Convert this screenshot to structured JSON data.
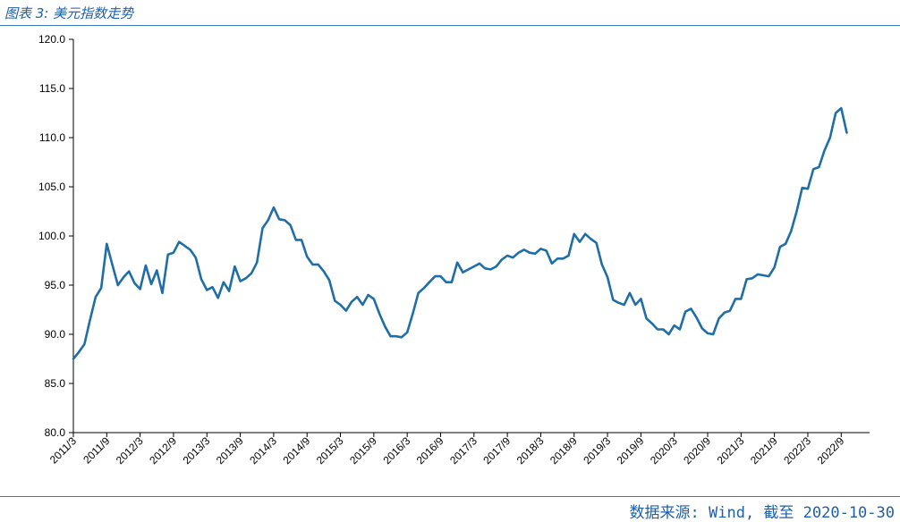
{
  "header": {
    "title": "图表 3: 美元指数走势"
  },
  "footer": {
    "source": "数据来源: Wind, 截至 2020-10-30"
  },
  "chart_data": {
    "type": "line",
    "title": "",
    "xlabel": "",
    "ylabel": "",
    "ylim": [
      80,
      120
    ],
    "yticks": [
      "80.0",
      "85.0",
      "90.0",
      "95.0",
      "100.0",
      "105.0",
      "110.0",
      "115.0",
      "120.0"
    ],
    "xticks": [
      "2011/3",
      "2011/9",
      "2012/3",
      "2012/9",
      "2013/3",
      "2013/9",
      "2014/3",
      "2014/9",
      "2015/3",
      "2015/9",
      "2016/3",
      "2016/9",
      "2017/3",
      "2017/9",
      "2018/3",
      "2018/9",
      "2019/3",
      "2019/9",
      "2020/3",
      "2020/9",
      "2021/3",
      "2021/9",
      "2022/3",
      "2022/9"
    ],
    "grid": false,
    "series": [
      {
        "color": "#1f6ea6",
        "x": [
          "2011/3",
          "2011/4",
          "2011/5",
          "2011/6",
          "2011/7",
          "2011/8",
          "2011/9",
          "2011/10",
          "2011/11",
          "2011/12",
          "2012/1",
          "2012/2",
          "2012/3",
          "2012/4",
          "2012/5",
          "2012/6",
          "2012/7",
          "2012/8",
          "2012/9",
          "2012/10",
          "2012/11",
          "2012/12",
          "2013/1",
          "2013/2",
          "2013/3",
          "2013/4",
          "2013/5",
          "2013/6",
          "2013/7",
          "2013/8",
          "2013/9",
          "2013/10",
          "2013/11",
          "2013/12",
          "2014/1",
          "2014/2",
          "2014/3",
          "2014/4",
          "2014/5",
          "2014/6",
          "2014/7",
          "2014/8",
          "2014/9",
          "2014/10",
          "2014/11",
          "2014/12",
          "2015/1",
          "2015/2",
          "2015/3",
          "2015/4",
          "2015/5",
          "2015/6",
          "2015/7",
          "2015/8",
          "2015/9",
          "2015/10",
          "2015/11",
          "2015/12",
          "2016/1",
          "2016/2",
          "2016/3",
          "2016/4",
          "2016/5",
          "2016/6",
          "2016/7",
          "2016/8",
          "2016/9",
          "2016/10",
          "2016/11",
          "2016/12",
          "2017/1",
          "2017/2",
          "2017/3",
          "2017/4",
          "2017/5",
          "2017/6",
          "2017/7",
          "2017/8",
          "2017/9",
          "2017/10",
          "2017/11",
          "2017/12",
          "2018/1",
          "2018/2",
          "2018/3",
          "2018/4",
          "2018/5",
          "2018/6",
          "2018/7",
          "2018/8",
          "2018/9",
          "2018/10",
          "2018/11",
          "2018/12",
          "2019/1",
          "2019/2",
          "2019/3",
          "2019/4",
          "2019/5",
          "2019/6",
          "2019/7",
          "2019/8",
          "2019/9",
          "2019/10",
          "2019/11",
          "2019/12",
          "2020/1",
          "2020/2",
          "2020/3",
          "2020/4",
          "2020/5",
          "2020/6",
          "2020/7",
          "2020/8",
          "2020/9",
          "2020/10",
          "2020/11",
          "2020/12",
          "2021/1",
          "2021/2",
          "2021/3",
          "2021/4",
          "2021/5",
          "2021/6",
          "2021/7",
          "2021/8",
          "2021/9",
          "2021/10",
          "2021/11",
          "2021/12",
          "2022/1",
          "2022/2",
          "2022/3",
          "2022/4",
          "2022/5",
          "2022/6",
          "2022/7",
          "2022/8",
          "2022/9",
          "2022/10"
        ],
        "values": [
          87.5,
          88.2,
          89.0,
          91.5,
          93.8,
          94.7,
          99.2,
          97.1,
          95.0,
          95.8,
          96.4,
          95.2,
          94.6,
          97.0,
          95.1,
          96.5,
          94.2,
          98.1,
          98.3,
          99.4,
          99.0,
          98.6,
          97.8,
          95.6,
          94.5,
          94.8,
          93.7,
          95.3,
          94.4,
          96.9,
          95.4,
          95.7,
          96.2,
          97.3,
          100.8,
          101.6,
          102.9,
          101.7,
          101.6,
          101.1,
          99.6,
          99.6,
          97.9,
          97.1,
          97.1,
          96.4,
          95.5,
          93.4,
          93.0,
          92.4,
          93.3,
          93.8,
          93.0,
          94.0,
          93.6,
          92.1,
          90.8,
          89.8,
          89.8,
          89.7,
          90.2,
          92.1,
          94.2,
          94.7,
          95.3,
          95.9,
          95.9,
          95.3,
          95.3,
          97.3,
          96.3,
          96.6,
          96.9,
          97.2,
          96.7,
          96.6,
          96.9,
          97.6,
          98.0,
          97.8,
          98.3,
          98.6,
          98.3,
          98.2,
          98.7,
          98.5,
          97.2,
          97.7,
          97.7,
          98.0,
          100.2,
          99.4,
          100.2,
          99.7,
          99.3,
          97.1,
          95.8,
          93.5,
          93.2,
          93.0,
          94.2,
          93.0,
          93.6,
          91.6,
          91.1,
          90.5,
          90.5,
          90.0,
          90.9,
          90.5,
          92.3,
          92.6,
          91.7,
          90.6,
          90.1,
          90.0,
          91.6,
          92.2,
          92.4,
          93.6,
          93.6,
          95.6,
          95.7,
          96.1,
          96.0,
          95.9,
          96.8,
          98.9,
          99.2,
          100.5,
          102.5,
          104.9,
          104.8,
          106.8,
          107.0,
          108.7,
          110.0,
          112.5,
          113.0,
          110.5
        ]
      }
    ]
  }
}
